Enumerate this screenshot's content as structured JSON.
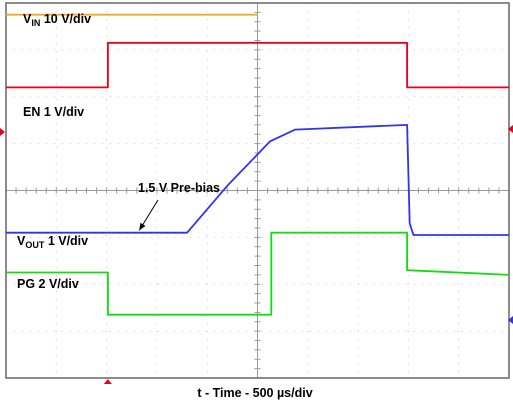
{
  "chart_data": {
    "type": "line",
    "xlabel": "t - Time - 500 µs/div",
    "x_divisions": 10,
    "y_divisions": 8,
    "grid": true,
    "series": [
      {
        "name": "VIN 10 V/div",
        "label_main": "V",
        "label_sub": "IN",
        "label_rest": " 10 V/div",
        "color": "#f5a623",
        "points": [
          [
            0,
            7.75
          ],
          [
            10,
            7.75
          ]
        ]
      },
      {
        "name": "EN 1 V/div",
        "label_main": "EN 1 V/div",
        "label_sub": "",
        "label_rest": "",
        "color": "#e8001c",
        "points": [
          [
            0,
            6.2
          ],
          [
            4.05,
            6.2
          ],
          [
            4.05,
            7.15
          ],
          [
            11.9,
            7.15
          ],
          [
            15.95,
            7.15
          ],
          [
            15.95,
            6.2
          ],
          [
            20,
            6.2
          ]
        ]
      },
      {
        "name": "VOUT 1 V/div",
        "label_main": "V",
        "label_sub": "OUT",
        "label_rest": " 1 V/div",
        "color": "#3333ee",
        "points": [
          [
            0,
            3.1
          ],
          [
            7.2,
            3.1
          ],
          [
            8.8,
            4.1
          ],
          [
            10.5,
            5.05
          ],
          [
            11.5,
            5.3
          ],
          [
            15.95,
            5.4
          ],
          [
            16.05,
            3.3
          ],
          [
            16.2,
            3.05
          ],
          [
            20,
            3.05
          ]
        ]
      },
      {
        "name": "PG 2 V/div",
        "label_main": "PG 2 V/div",
        "label_sub": "",
        "label_rest": "",
        "color": "#11dd11",
        "points": [
          [
            0,
            2.25
          ],
          [
            4.05,
            2.25
          ],
          [
            4.05,
            1.35
          ],
          [
            10.55,
            1.35
          ],
          [
            10.55,
            3.1
          ],
          [
            15.95,
            3.1
          ],
          [
            15.95,
            2.3
          ],
          [
            20,
            2.2
          ]
        ]
      }
    ],
    "annotations": [
      {
        "text": "1.5 V Pre-bias",
        "arrow_to": [
          5.3,
          3.15
        ]
      }
    ]
  },
  "icons": {
    "trigger_marker": "red-triangle-icon",
    "ground_marker": "red-triangle-icon"
  }
}
